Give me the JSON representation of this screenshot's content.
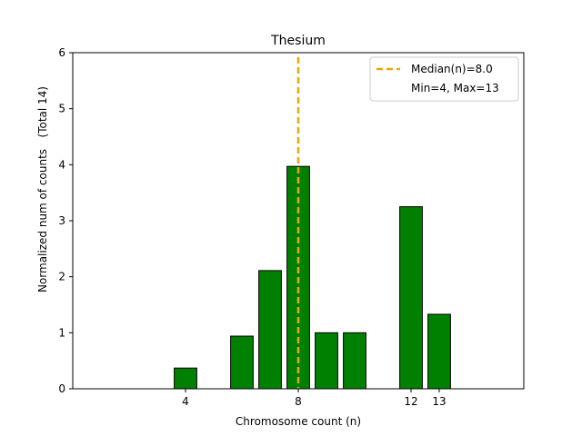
{
  "chart_data": {
    "type": "bar",
    "title": "Thesium",
    "xlabel": "Chromosome count (n)",
    "ylabel_main": "Normalized num of counts",
    "ylabel_note": "(Total 14)",
    "xlim": [
      0,
      16
    ],
    "ylim": [
      0,
      6
    ],
    "xticks": [
      4,
      8,
      12,
      13
    ],
    "yticks": [
      0,
      1,
      2,
      3,
      4,
      5,
      6
    ],
    "bars": [
      {
        "x": 4,
        "value": 0.37
      },
      {
        "x": 6,
        "value": 0.94
      },
      {
        "x": 7,
        "value": 2.11
      },
      {
        "x": 8,
        "value": 3.97
      },
      {
        "x": 9,
        "value": 1.0
      },
      {
        "x": 10,
        "value": 1.0
      },
      {
        "x": 12,
        "value": 3.25
      },
      {
        "x": 13,
        "value": 1.33
      }
    ],
    "bar_color": "#008000",
    "median": 8.0,
    "median_color": "#e8a80c",
    "legend": {
      "position": "top-right",
      "entries": [
        "Median(n)=8.0",
        "Min=4, Max=13"
      ]
    }
  }
}
